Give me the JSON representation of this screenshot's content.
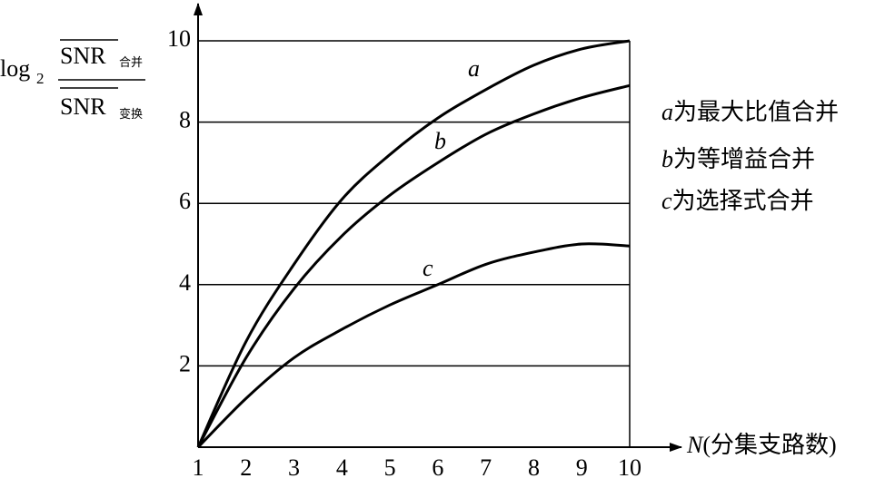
{
  "chart_data": {
    "type": "line",
    "xlabel": {
      "var": "N",
      "text": "(分集支路数)"
    },
    "ylabel": {
      "log": "log",
      "base": "2",
      "numerator": "SNR",
      "numerator_sub": "合并",
      "denominator": "SNR",
      "denominator_sub": "变换"
    },
    "x": [
      1,
      2,
      3,
      4,
      5,
      6,
      7,
      8,
      9,
      10
    ],
    "series": [
      {
        "name": "a",
        "description": "为最大比值合并",
        "color": "#000000",
        "values": [
          0,
          2.6,
          4.5,
          6.1,
          7.2,
          8.1,
          8.8,
          9.4,
          9.8,
          10
        ]
      },
      {
        "name": "b",
        "description": "为等增益合并",
        "color": "#000000",
        "values": [
          0,
          2.2,
          3.9,
          5.2,
          6.2,
          7.0,
          7.7,
          8.2,
          8.6,
          8.9
        ]
      },
      {
        "name": "c",
        "description": "为选择式合并",
        "color": "#000000",
        "values": [
          0,
          1.2,
          2.2,
          2.9,
          3.5,
          4.0,
          4.5,
          4.8,
          5.0,
          4.95
        ]
      }
    ],
    "xlim": [
      1,
      10
    ],
    "ylim": [
      0,
      10
    ],
    "xticks": [
      1,
      2,
      3,
      4,
      5,
      6,
      7,
      8,
      9,
      10
    ],
    "yticks": [
      2,
      4,
      6,
      8,
      10
    ],
    "grid": true
  }
}
